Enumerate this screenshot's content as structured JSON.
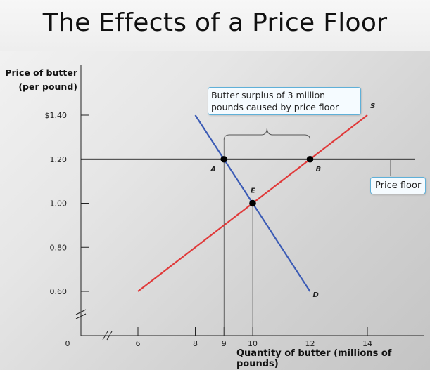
{
  "title": "The Effects of a Price Floor",
  "chart_data": {
    "type": "line",
    "xlabel": "Quantity of butter (millions of pounds)",
    "ylabel_line1": "Price of butter",
    "ylabel_line2": "(per pound)",
    "x_ticks": [
      {
        "value": 0,
        "label": "0"
      },
      {
        "value": 6,
        "label": "6"
      },
      {
        "value": 8,
        "label": "8"
      },
      {
        "value": 9,
        "label": "9"
      },
      {
        "value": 10,
        "label": "10"
      },
      {
        "value": 12,
        "label": "12"
      },
      {
        "value": 14,
        "label": "14"
      }
    ],
    "y_ticks": [
      {
        "value": 0.6,
        "label": "0.60"
      },
      {
        "value": 0.8,
        "label": "0.80"
      },
      {
        "value": 1.0,
        "label": "1.00"
      },
      {
        "value": 1.2,
        "label": "1.20"
      },
      {
        "value": 1.4,
        "label": "$1.40"
      }
    ],
    "series": [
      {
        "name": "D",
        "color": "#3b5bb5",
        "points": [
          [
            8,
            1.4
          ],
          [
            12,
            0.6
          ]
        ]
      },
      {
        "name": "S",
        "color": "#e03a3a",
        "points": [
          [
            6,
            0.6
          ],
          [
            14,
            1.4
          ]
        ]
      }
    ],
    "price_floor": {
      "y": 1.2,
      "x_range": [
        3.8,
        15.7
      ],
      "label": "Price floor",
      "color": "#000000"
    },
    "points": [
      {
        "label": "A",
        "x": 9,
        "y": 1.2
      },
      {
        "label": "B",
        "x": 12,
        "y": 1.2
      },
      {
        "label": "E",
        "x": 10,
        "y": 1.0
      }
    ],
    "surplus_annotation": {
      "from_x": 9,
      "to_x": 12,
      "line1": "Butter surplus of 3 million",
      "line2": "pounds caused by  price floor"
    },
    "axis_breaks": true
  }
}
